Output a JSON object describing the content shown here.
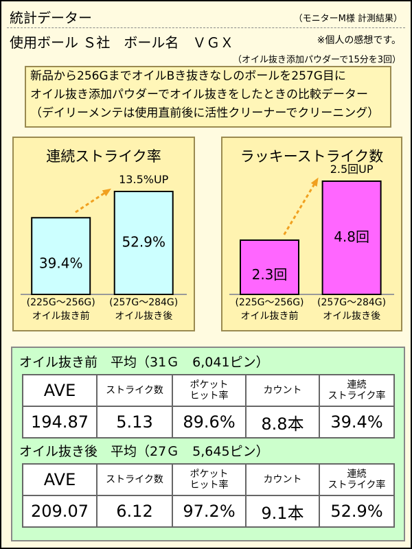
{
  "header": {
    "title": "統計データー",
    "source": "（モニターM様 計測結果）",
    "ball": "使用ボール Ｓ社　ボール名　ＶＧＸ",
    "disclaimer": "※個人の感想です。",
    "treatment": "（オイル抜き添加パウダーで15分を3回）"
  },
  "note": [
    "新品から256GまでオイルBき抜きなしのボールを257G目に",
    "オイル抜き添加パウダーでオイル抜きをしたときの比較データー",
    "（デイリーメンテは使用直前後に活性クリーナーでクリーニング）"
  ],
  "chart_data": [
    {
      "type": "bar",
      "title": "連続ストライク率",
      "annotation": "13.5%UP",
      "categories": [
        [
          "(225G～256G)",
          "オイル抜き前"
        ],
        [
          "(257G～284G)",
          "オイル抜き後"
        ]
      ],
      "values": [
        39.4,
        52.9
      ],
      "value_labels": [
        "39.4%",
        "52.9%"
      ],
      "color": "#ccffff"
    },
    {
      "type": "bar",
      "title": "ラッキーストライク数",
      "annotation": "2.5回UP",
      "categories": [
        [
          "(225G～256G)",
          "オイル抜き前"
        ],
        [
          "(257G～284G)",
          "オイル抜き後"
        ]
      ],
      "values": [
        2.3,
        4.8
      ],
      "value_labels": [
        "2.3回",
        "4.8回"
      ],
      "color": "#ff66ff"
    }
  ],
  "tables": [
    {
      "title": "オイル抜き前　平均（31Ｇ　6,041ピン）",
      "header": [
        "AVE",
        "ストライク数",
        [
          "ポケット",
          "ヒット率"
        ],
        "カウント",
        [
          "連続",
          "ストライク率"
        ]
      ],
      "row": [
        "194.87",
        "5.13",
        "89.6%",
        "8.8本",
        "39.4%"
      ]
    },
    {
      "title": "オイル抜き後　平均（27Ｇ　5,645ピン）",
      "header": [
        "AVE",
        "ストライク数",
        [
          "ポケット",
          "ヒット率"
        ],
        "カウント",
        [
          "連続",
          "ストライク率"
        ]
      ],
      "row": [
        "209.07",
        "6.12",
        "97.2%",
        "9.1本",
        "52.9%"
      ]
    }
  ]
}
